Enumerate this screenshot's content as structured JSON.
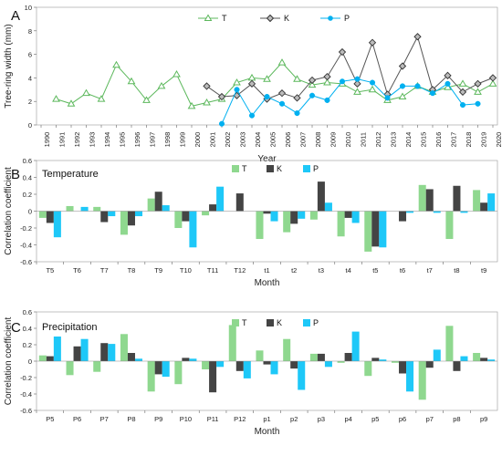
{
  "chart_data": [
    {
      "type": "line",
      "panel": "A",
      "title": "",
      "xlabel": "Year",
      "ylabel": "Tree-ring width (mm)",
      "ylim": [
        0,
        10
      ],
      "yticks": [
        0,
        2,
        4,
        6,
        8,
        10
      ],
      "categories": [
        "1990",
        "1991",
        "1992",
        "1993",
        "1994",
        "1995",
        "1996",
        "1997",
        "1998",
        "1999",
        "2000",
        "2001",
        "2002",
        "2003",
        "2004",
        "2005",
        "2006",
        "2007",
        "2008",
        "2009",
        "2010",
        "2011",
        "2012",
        "2013",
        "2014",
        "2015",
        "2016",
        "2017",
        "2018",
        "2019",
        "2020"
      ],
      "legend_position": "top-center",
      "series": [
        {
          "name": "T",
          "color": "#5cb85c",
          "marker": "triangle",
          "values": [
            null,
            2.2,
            1.8,
            2.7,
            2.2,
            5.1,
            3.7,
            2.1,
            3.3,
            4.3,
            1.6,
            1.9,
            2.2,
            3.6,
            4.0,
            3.9,
            5.3,
            3.9,
            3.4,
            3.6,
            3.5,
            2.8,
            3.0,
            2.1,
            2.4,
            3.3,
            2.8,
            3.2,
            3.5,
            2.8,
            3.5
          ]
        },
        {
          "name": "K",
          "color": "#555555",
          "marker": "diamond",
          "values": [
            null,
            null,
            null,
            null,
            null,
            null,
            null,
            null,
            null,
            null,
            null,
            3.3,
            2.4,
            2.5,
            3.5,
            2.2,
            2.7,
            2.3,
            3.8,
            4.1,
            6.2,
            3.5,
            7.0,
            2.6,
            5.0,
            7.5,
            3.0,
            4.2,
            2.8,
            3.5,
            4.0
          ]
        },
        {
          "name": "P",
          "color": "#00b0f0",
          "marker": "circle",
          "values": [
            null,
            null,
            null,
            null,
            null,
            null,
            null,
            null,
            null,
            null,
            null,
            null,
            0.1,
            3.0,
            0.8,
            2.4,
            1.8,
            1.0,
            2.5,
            2.1,
            3.7,
            3.9,
            3.6,
            2.3,
            3.3,
            3.3,
            2.7,
            3.5,
            1.7,
            1.8,
            null
          ]
        }
      ]
    },
    {
      "type": "bar",
      "panel": "B",
      "title": "Temperature",
      "xlabel": "Month",
      "ylabel": "Correlation coefficient",
      "ylim": [
        -0.6,
        0.6
      ],
      "yticks": [
        -0.6,
        -0.4,
        -0.2,
        0,
        0.2,
        0.4,
        0.6
      ],
      "legend_position": "top-center",
      "categories": [
        "T5",
        "T6",
        "T7",
        "T8",
        "T9",
        "T10",
        "T11",
        "T12",
        "t1",
        "t2",
        "t3",
        "t4",
        "t5",
        "t6",
        "t7",
        "t8",
        "t9"
      ],
      "series": [
        {
          "name": "T",
          "color": "#8fd88f",
          "values": [
            -0.08,
            0.06,
            0.05,
            -0.28,
            0.15,
            -0.2,
            -0.05,
            0,
            -0.33,
            -0.25,
            -0.1,
            -0.3,
            -0.48,
            0,
            0.31,
            -0.33,
            0.25
          ]
        },
        {
          "name": "K",
          "color": "#444444",
          "values": [
            -0.14,
            0,
            -0.13,
            -0.17,
            0.23,
            -0.12,
            0.08,
            0.21,
            -0.03,
            -0.15,
            0.35,
            -0.08,
            -0.42,
            -0.12,
            0.26,
            0.3,
            0.1
          ]
        },
        {
          "name": "P",
          "color": "#1ec8f8",
          "values": [
            -0.31,
            0.05,
            -0.06,
            -0.06,
            0.07,
            -0.43,
            0.29,
            0,
            -0.12,
            -0.09,
            0.1,
            -0.14,
            -0.43,
            -0.02,
            -0.02,
            -0.02,
            0.21
          ]
        }
      ]
    },
    {
      "type": "bar",
      "panel": "C",
      "title": "Precipitation",
      "xlabel": "Month",
      "ylabel": "Correlation coefficient",
      "ylim": [
        -0.6,
        0.6
      ],
      "yticks": [
        -0.6,
        -0.4,
        -0.2,
        0,
        0.2,
        0.4,
        0.6
      ],
      "legend_position": "top-center",
      "categories": [
        "P5",
        "P6",
        "P7",
        "P8",
        "P9",
        "P10",
        "P11",
        "P12",
        "p1",
        "p2",
        "p3",
        "p4",
        "p5",
        "p6",
        "p7",
        "p8",
        "p9"
      ],
      "series": [
        {
          "name": "T",
          "color": "#8fd88f",
          "values": [
            0.07,
            -0.17,
            -0.13,
            0.33,
            -0.37,
            -0.28,
            -0.1,
            0.44,
            0.13,
            0.27,
            0.09,
            -0.02,
            -0.18,
            -0.02,
            -0.47,
            0.43,
            0.1
          ]
        },
        {
          "name": "K",
          "color": "#444444",
          "values": [
            0.06,
            0.18,
            0.22,
            0.1,
            -0.16,
            0.04,
            -0.38,
            -0.12,
            -0.04,
            -0.09,
            0.09,
            0.1,
            0.04,
            -0.15,
            -0.08,
            -0.12,
            0.04
          ]
        },
        {
          "name": "P",
          "color": "#1ec8f8",
          "values": [
            0.3,
            0.27,
            0.21,
            0.03,
            -0.19,
            0.03,
            -0.07,
            -0.21,
            -0.16,
            -0.35,
            -0.07,
            0.36,
            0.02,
            -0.37,
            0.14,
            0.06,
            0.02
          ]
        }
      ]
    }
  ]
}
